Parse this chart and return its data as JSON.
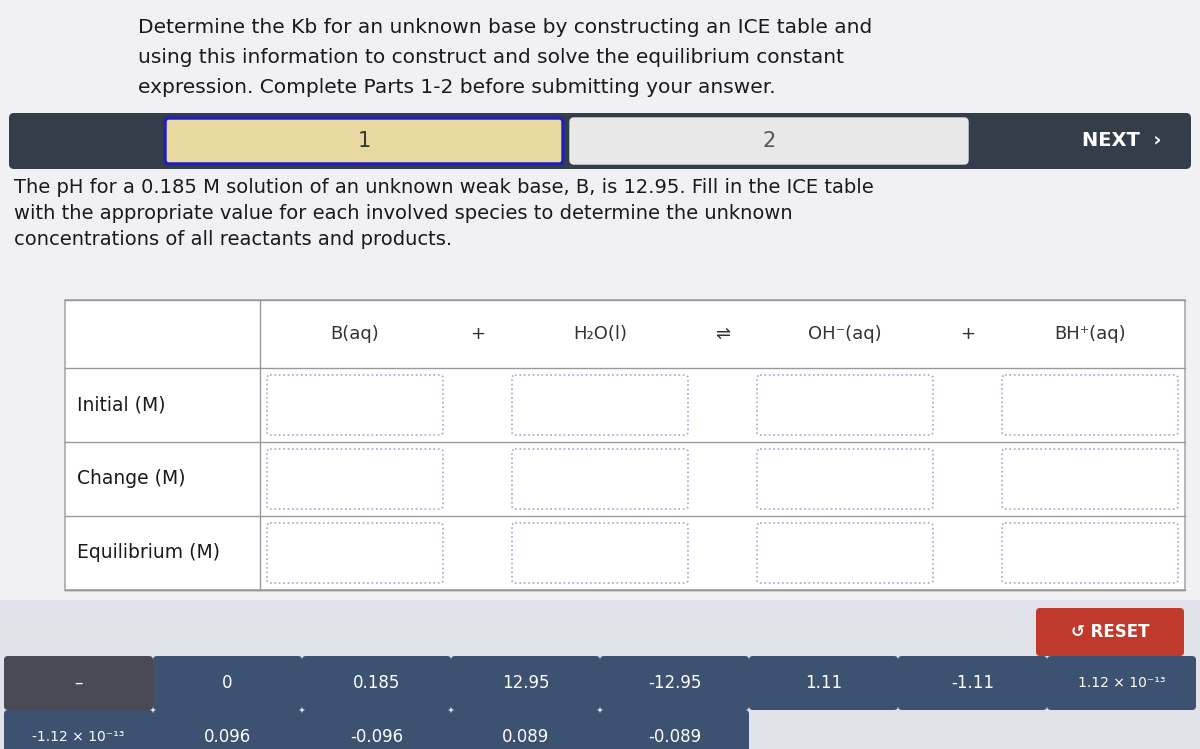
{
  "title_line1": "Determine the Kb for an unknown base by constructing an ICE table and",
  "title_line2": "using this information to construct and solve the equilibrium constant",
  "title_line3": "expression. Complete Parts 1-2 before submitting your answer.",
  "nav_bar_color": "#363d4a",
  "nav_tab1_label": "1",
  "nav_tab2_label": "2",
  "nav_next_label": "NEXT  ›",
  "tab1_fill": "#e8d9a0",
  "tab1_border": "#2222bb",
  "tab2_fill": "#e8e8e8",
  "description_line1": "The pH for a 0.185 M solution of an unknown weak base, B, is 12.95. Fill in the ICE table",
  "description_line2": "with the appropriate value for each involved species to determine the unknown",
  "description_line3": "concentrations of all reactants and products.",
  "col_headers": [
    "B(aq)",
    "+",
    "H₂O(l)",
    "⇌",
    "OH⁻(aq)",
    "+",
    "BH⁺(aq)"
  ],
  "row_labels": [
    "Initial (M)",
    "Change (M)",
    "Equilibrium (M)"
  ],
  "bg_color": "#f0f0f5",
  "table_bg": "#ffffff",
  "table_border": "#aaaaaa",
  "cell_border_color": "#a0a8cc",
  "reset_btn_color": "#c0392b",
  "reset_btn_label": "↺ RESET",
  "button_color": "#3d5170",
  "button_dark_color": "#4a4a55",
  "buttons_row1": [
    "–",
    "0",
    "0.185",
    "12.95",
    "-12.95",
    "1.11",
    "-1.11",
    "1.12 × 10⁻¹³"
  ],
  "buttons_row2": [
    "-1.12 × 10⁻¹³",
    "0.096",
    "-0.096",
    "0.089",
    "-0.089"
  ],
  "bottom_panel_color": "#e2e2ea"
}
